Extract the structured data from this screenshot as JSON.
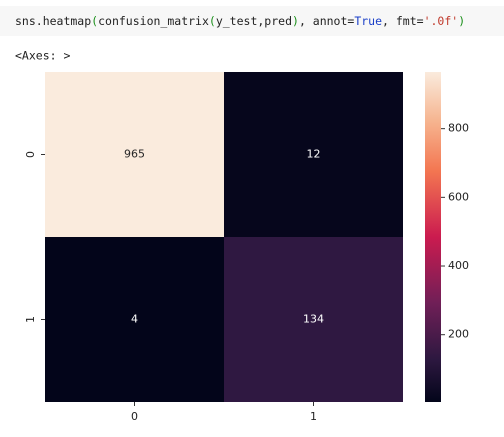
{
  "code": [
    {
      "text": "sns.heatmap",
      "color": "#222222"
    },
    {
      "text": "(",
      "color": "#1a8f1a"
    },
    {
      "text": "confusion_matrix",
      "color": "#222222"
    },
    {
      "text": "(",
      "color": "#1a8f1a"
    },
    {
      "text": "y_test,pred",
      "color": "#222222"
    },
    {
      "text": ")",
      "color": "#1a8f1a"
    },
    {
      "text": ", annot=",
      "color": "#222222"
    },
    {
      "text": "True",
      "color": "#1a3fc8"
    },
    {
      "text": ", fmt=",
      "color": "#222222"
    },
    {
      "text": "'.0f'",
      "color": "#c0392b"
    },
    {
      "text": ")",
      "color": "#1a8f1a"
    }
  ],
  "output": "<Axes: >",
  "chart_data": {
    "type": "heatmap",
    "x": [
      "0",
      "1"
    ],
    "y": [
      "0",
      "1"
    ],
    "values": [
      [
        965,
        12
      ],
      [
        4,
        134
      ]
    ],
    "colormap": "rocket",
    "clim": [
      4,
      965
    ],
    "cticks": [
      200,
      400,
      600,
      800
    ]
  }
}
